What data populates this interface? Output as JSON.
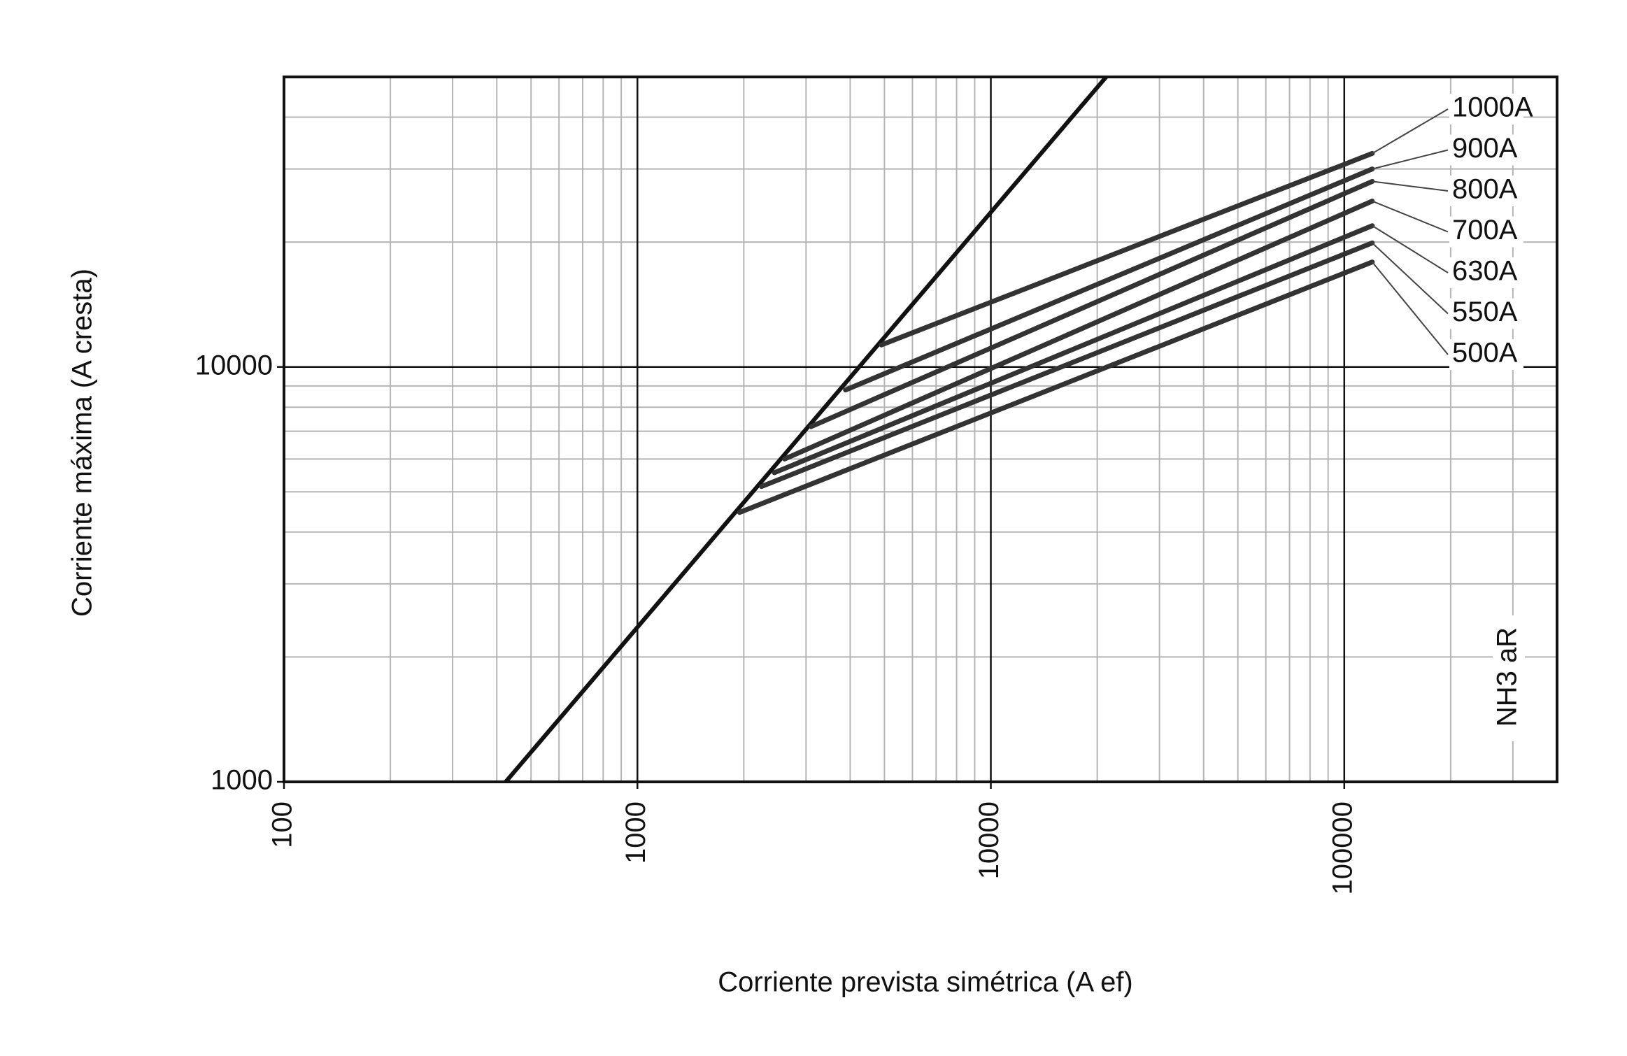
{
  "chart_data": {
    "type": "line",
    "x_label": "Corriente prevista simétrica (A ef)",
    "y_label": "Corriente máxima (A cresta)",
    "annotation": "NH3 aR",
    "log_x": true,
    "log_y": true,
    "grid": true,
    "minor_grid": true,
    "xlim": [
      100,
      400000
    ],
    "ylim": [
      1000,
      50000
    ],
    "xticks": [
      100,
      1000,
      10000,
      100000
    ],
    "yticks": [
      1000,
      10000
    ],
    "reference_line": {
      "color": "#111111",
      "x": [
        424,
        21200
      ],
      "values": [
        1000,
        50000
      ]
    },
    "series": [
      {
        "name": "1000A",
        "color": "#333333",
        "x": [
          4900,
          120000
        ],
        "values": [
          11300,
          32700
        ]
      },
      {
        "name": "900A",
        "color": "#333333",
        "x": [
          3880,
          120000
        ],
        "values": [
          8800,
          30000
        ]
      },
      {
        "name": "800A",
        "color": "#333333",
        "x": [
          3100,
          120000
        ],
        "values": [
          7180,
          28000
        ]
      },
      {
        "name": "700A",
        "color": "#333333",
        "x": [
          2610,
          120000
        ],
        "values": [
          6000,
          25100
        ]
      },
      {
        "name": "630A",
        "color": "#333333",
        "x": [
          2440,
          120000
        ],
        "values": [
          5560,
          21900
        ]
      },
      {
        "name": "550A",
        "color": "#333333",
        "x": [
          2245,
          120000
        ],
        "values": [
          5150,
          19900
        ]
      },
      {
        "name": "500A",
        "color": "#333333",
        "x": [
          1945,
          120000
        ],
        "values": [
          4460,
          17900
        ]
      }
    ]
  }
}
